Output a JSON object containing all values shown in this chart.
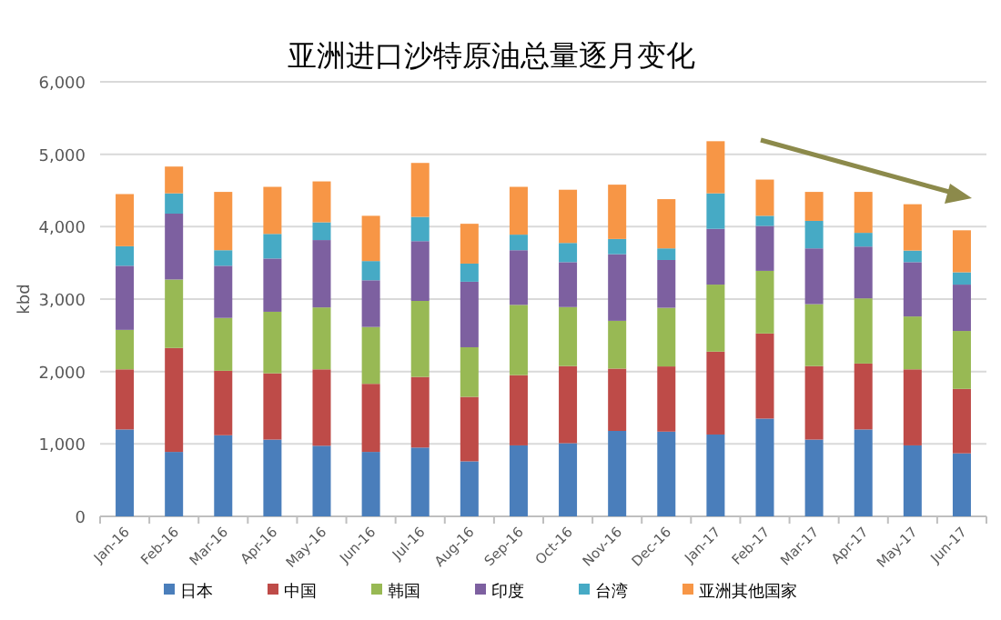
{
  "chart_data": {
    "type": "bar",
    "stacked": true,
    "title": "亚洲进口沙特原油总量逐月变化",
    "ylabel": "kbd",
    "categories": [
      "Jan-16",
      "Feb-16",
      "Mar-16",
      "Apr-16",
      "May-16",
      "Jun-16",
      "Jul-16",
      "Aug-16",
      "Sep-16",
      "Oct-16",
      "Nov-16",
      "Dec-16",
      "Jan-17",
      "Feb-17",
      "Mar-17",
      "Apr-17",
      "May-17",
      "Jun-17"
    ],
    "series": [
      {
        "name": "日本",
        "color": "#4a7ebb",
        "values": [
          1200,
          890,
          1120,
          1060,
          975,
          890,
          950,
          760,
          980,
          1010,
          1180,
          1170,
          1130,
          1350,
          1060,
          1200,
          980,
          870
        ]
      },
      {
        "name": "中国",
        "color": "#be4b48",
        "values": [
          830,
          1435,
          890,
          915,
          1055,
          940,
          975,
          890,
          970,
          1065,
          860,
          900,
          1145,
          1175,
          1015,
          910,
          1050,
          890
        ]
      },
      {
        "name": "韩国",
        "color": "#98b954",
        "values": [
          545,
          945,
          730,
          850,
          855,
          785,
          1050,
          685,
          970,
          815,
          660,
          810,
          925,
          865,
          855,
          900,
          730,
          800
        ]
      },
      {
        "name": "印度",
        "color": "#7d60a0",
        "values": [
          885,
          910,
          720,
          735,
          930,
          645,
          825,
          905,
          755,
          620,
          920,
          660,
          770,
          620,
          770,
          715,
          750,
          640
        ]
      },
      {
        "name": "台湾",
        "color": "#46aac5",
        "values": [
          270,
          280,
          215,
          340,
          245,
          265,
          335,
          250,
          215,
          265,
          210,
          160,
          490,
          140,
          380,
          190,
          160,
          170
        ]
      },
      {
        "name": "亚洲其他国家",
        "color": "#f79646",
        "values": [
          720,
          370,
          805,
          650,
          565,
          625,
          745,
          550,
          660,
          735,
          750,
          680,
          720,
          500,
          400,
          565,
          640,
          580
        ]
      }
    ],
    "ylim": [
      0,
      6000
    ],
    "yticks": [
      0,
      {
        "value": 1000,
        "label": "1,000"
      },
      {
        "value": 2000,
        "label": "2,000"
      },
      {
        "value": 3000,
        "label": "3,000"
      },
      {
        "value": 4000,
        "label": "4,000"
      },
      {
        "value": 5000,
        "label": "5,000"
      },
      {
        "value": 6000,
        "label": "6,000"
      }
    ],
    "grid": "y",
    "legend": "bottom"
  }
}
